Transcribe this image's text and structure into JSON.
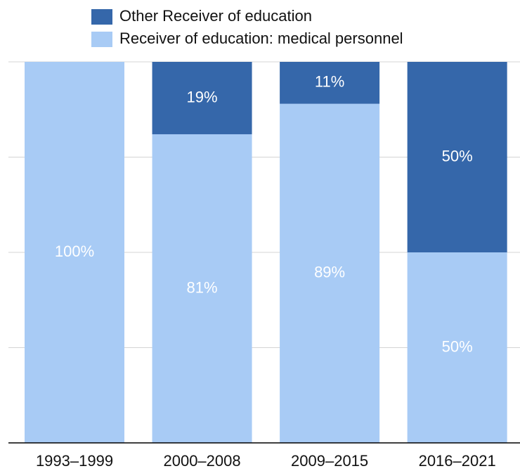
{
  "chart_data": {
    "type": "stacked_bar",
    "categories": [
      "1993–1999",
      "2000–2008",
      "2009–2015",
      "2016–2021"
    ],
    "series": [
      {
        "name": "Other Receiver of education",
        "color": "#3567aa",
        "values": [
          0,
          19,
          11,
          50
        ],
        "value_labels": [
          null,
          "19%",
          "11%",
          "50%"
        ]
      },
      {
        "name": "Receiver of education: medical personnel",
        "color": "#a8cbf5",
        "values": [
          100,
          81,
          89,
          50
        ],
        "value_labels": [
          "100%",
          "81%",
          "89%",
          "50%"
        ]
      }
    ],
    "ylim": [
      0,
      100
    ],
    "yticks": [
      0,
      25,
      50,
      75,
      100
    ],
    "grid": true,
    "legend": "top"
  }
}
